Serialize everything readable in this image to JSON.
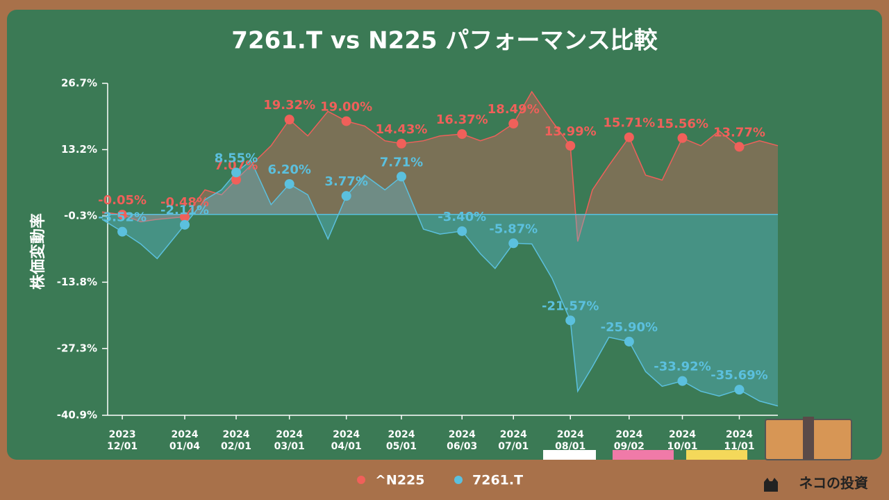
{
  "chart_data": {
    "type": "line",
    "title": "7261.T vs N225 パフォーマンス比較",
    "ylabel": "株価変動率",
    "footer": "ネコの投資",
    "x": [
      "2023-11-20",
      "2023-12-01",
      "2023-12-11",
      "2023-12-20",
      "2024-01-04",
      "2024-01-15",
      "2024-01-24",
      "2024-02-01",
      "2024-02-09",
      "2024-02-20",
      "2024-03-01",
      "2024-03-11",
      "2024-03-22",
      "2024-04-01",
      "2024-04-11",
      "2024-04-22",
      "2024-05-01",
      "2024-05-13",
      "2024-05-22",
      "2024-06-03",
      "2024-06-13",
      "2024-06-21",
      "2024-07-01",
      "2024-07-11",
      "2024-07-22",
      "2024-08-01",
      "2024-08-05",
      "2024-08-13",
      "2024-08-22",
      "2024-09-02",
      "2024-09-11",
      "2024-09-20",
      "2024-10-01",
      "2024-10-11",
      "2024-10-21",
      "2024-11-01",
      "2024-11-12",
      "2024-11-22"
    ],
    "xlim": [
      "2023-11-20",
      "2024-11-22"
    ],
    "xticks": [
      {
        "value": "2023-12-01",
        "label": "2023\n12/01"
      },
      {
        "value": "2024-01-04",
        "label": "2024\n01/04"
      },
      {
        "value": "2024-02-01",
        "label": "2024\n02/01"
      },
      {
        "value": "2024-03-01",
        "label": "2024\n03/01"
      },
      {
        "value": "2024-04-01",
        "label": "2024\n04/01"
      },
      {
        "value": "2024-05-01",
        "label": "2024\n05/01"
      },
      {
        "value": "2024-06-03",
        "label": "2024\n06/03"
      },
      {
        "value": "2024-07-01",
        "label": "2024\n07/01"
      },
      {
        "value": "2024-08-01",
        "label": "2024\n08/01"
      },
      {
        "value": "2024-09-02",
        "label": "2024\n09/02"
      },
      {
        "value": "2024-10-01",
        "label": "2024\n10/01"
      },
      {
        "value": "2024-11-01",
        "label": "2024\n11/01"
      }
    ],
    "ylim": [
      -40.9,
      26.7
    ],
    "yticks": [
      {
        "value": 26.7,
        "label": "26.7%"
      },
      {
        "value": 13.2,
        "label": "13.2%"
      },
      {
        "value": -0.3,
        "label": "-0.3%"
      },
      {
        "value": -13.8,
        "label": "-13.8%"
      },
      {
        "value": -27.3,
        "label": "-27.3%"
      },
      {
        "value": -40.9,
        "label": "-40.9%"
      }
    ],
    "series": [
      {
        "name": "^N225",
        "color": "#f0605a",
        "values": [
          0.5,
          -0.05,
          -1.5,
          -1,
          -0.48,
          5,
          4,
          7.07,
          10,
          14,
          19.32,
          16,
          21,
          19.0,
          18,
          15,
          14.43,
          15,
          16,
          16.37,
          15,
          16,
          18.49,
          25,
          19,
          13.99,
          -5.5,
          5,
          10,
          15.71,
          8,
          7,
          15.56,
          14,
          17,
          13.77,
          15,
          14
        ],
        "value_labels": [
          null,
          "-0.05%",
          null,
          null,
          "-0.48%",
          null,
          null,
          "7.07%",
          null,
          null,
          "19.32%",
          null,
          null,
          "19.00%",
          null,
          null,
          "14.43%",
          null,
          null,
          "16.37%",
          null,
          null,
          "18.49%",
          null,
          null,
          "13.99%",
          null,
          null,
          null,
          "15.71%",
          null,
          null,
          "15.56%",
          null,
          null,
          "13.77%",
          null,
          null
        ]
      },
      {
        "name": "7261.T",
        "color": "#5bc0de",
        "values": [
          -1,
          -3.52,
          -6,
          -9,
          -2.11,
          3,
          5,
          8.55,
          11,
          2,
          6.2,
          4,
          -5,
          3.77,
          8,
          5,
          7.71,
          -3,
          -4,
          -3.4,
          -8,
          -11,
          -5.87,
          -6,
          -13,
          -21.57,
          -36,
          -31,
          -25,
          -25.9,
          -32,
          -35,
          -33.92,
          -36,
          -37,
          -35.69,
          -38,
          -39
        ],
        "value_labels": [
          null,
          "-3.52%",
          null,
          null,
          "-2.11%",
          null,
          null,
          "8.55%",
          null,
          null,
          "6.20%",
          null,
          null,
          "3.77%",
          null,
          null,
          "7.71%",
          null,
          null,
          "-3.40%",
          null,
          null,
          "-5.87%",
          null,
          null,
          "-21.57%",
          null,
          null,
          null,
          "-25.90%",
          null,
          null,
          "-33.92%",
          null,
          null,
          "-35.69%",
          null,
          null
        ]
      }
    ]
  }
}
